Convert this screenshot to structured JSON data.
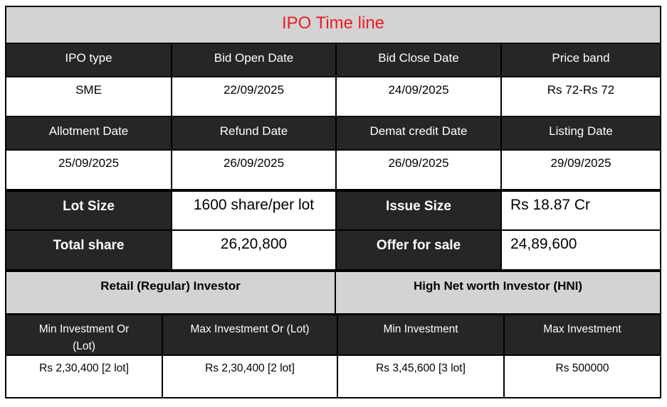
{
  "colors": {
    "title_red": "#ed1c24",
    "dark_row": "#262626",
    "light_gray": "#d3d3d3"
  },
  "table": {
    "title": "IPO Time line",
    "section1": {
      "headers": [
        "IPO type",
        "Bid Open Date",
        "Bid Close Date",
        "Price band"
      ],
      "values": [
        "SME",
        "22/09/2025",
        "24/09/2025",
        "Rs 72-Rs 72"
      ]
    },
    "section2": {
      "headers": [
        "Allotment Date",
        "Refund Date",
        "Demat credit Date",
        "Listing Date"
      ],
      "values": [
        "25/09/2025",
        "26/09/2025",
        "26/09/2025",
        "29/09/2025"
      ]
    },
    "stats": [
      {
        "label": "Lot Size",
        "value": "1600 share/per lot"
      },
      {
        "label": "Issue Size",
        "value": "Rs 18.87 Cr"
      },
      {
        "label": "Total share",
        "value": "26,20,800"
      },
      {
        "label": "Offer for sale",
        "value": "24,89,600"
      }
    ],
    "investors": {
      "groups": [
        "Retail (Regular) Investor",
        "High Net worth Investor (HNI)"
      ],
      "headers": [
        "Min Investment Or (Lot)",
        "Max Investment Or (Lot)",
        "Min Investment",
        "Max Investment"
      ],
      "values": [
        "Rs 2,30,400 [2 lot]",
        "Rs 2,30,400 [2 lot]",
        "Rs 3,45,600 [3 lot]",
        "Rs 500000"
      ]
    }
  }
}
